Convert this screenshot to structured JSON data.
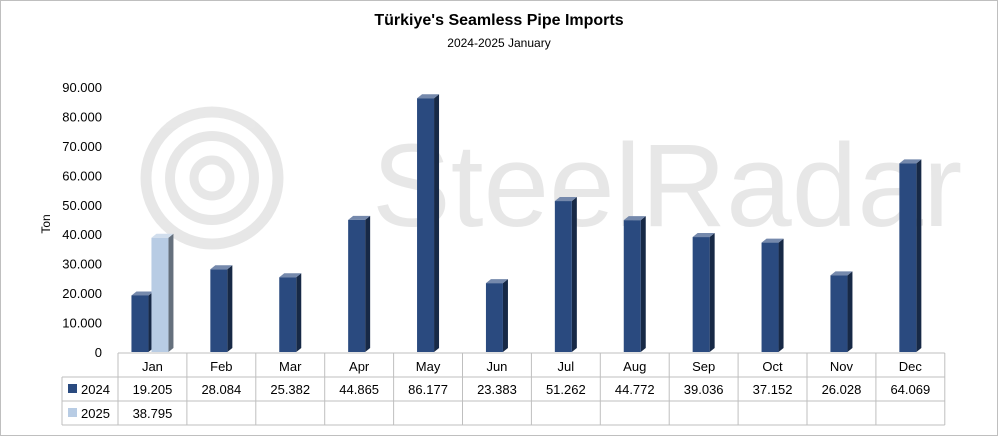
{
  "watermark": "SteelRadar",
  "chart_data": {
    "type": "bar",
    "title": "Türkiye's Seamless Pipe Imports",
    "subtitle": "2024-2025  January",
    "ylabel": "Ton",
    "ylim": [
      0,
      90000
    ],
    "yticks": [
      {
        "value": 0,
        "label": "0"
      },
      {
        "value": 10000,
        "label": "10.000"
      },
      {
        "value": 20000,
        "label": "20.000"
      },
      {
        "value": 30000,
        "label": "30.000"
      },
      {
        "value": 40000,
        "label": "40.000"
      },
      {
        "value": 50000,
        "label": "50.000"
      },
      {
        "value": 60000,
        "label": "60.000"
      },
      {
        "value": 70000,
        "label": "70.000"
      },
      {
        "value": 80000,
        "label": "80.000"
      },
      {
        "value": 90000,
        "label": "90.000"
      }
    ],
    "categories": [
      "Jan",
      "Feb",
      "Mar",
      "Apr",
      "May",
      "Jun",
      "Jul",
      "Aug",
      "Sep",
      "Oct",
      "Nov",
      "Dec"
    ],
    "series": [
      {
        "name": "2024",
        "color": "#2a4a7f",
        "values": [
          19205,
          28084,
          25382,
          44865,
          86177,
          23383,
          51262,
          44772,
          39036,
          37152,
          26028,
          64069
        ],
        "labels": [
          "19.205",
          "28.084",
          "25.382",
          "44.865",
          "86.177",
          "23.383",
          "51.262",
          "44.772",
          "39.036",
          "37.152",
          "26.028",
          "64.069"
        ]
      },
      {
        "name": "2025",
        "color": "#b8cce4",
        "values": [
          38795,
          null,
          null,
          null,
          null,
          null,
          null,
          null,
          null,
          null,
          null,
          null
        ],
        "labels": [
          "38.795",
          "",
          "",
          "",
          "",
          "",
          "",
          "",
          "",
          "",
          "",
          ""
        ]
      }
    ],
    "grid": false,
    "legend": "data-table"
  }
}
